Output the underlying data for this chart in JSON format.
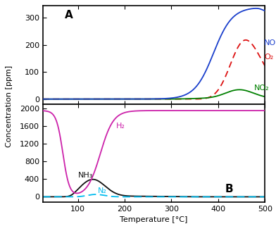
{
  "title_A": "A",
  "title_B": "B",
  "xlabel": "Temperature [°C]",
  "ylabel": "Concentration [ppm]",
  "xlim": [
    25,
    500
  ],
  "ylim_A": [
    -18,
    345
  ],
  "ylim_B": [
    -120,
    2100
  ],
  "yticks_A": [
    0,
    100,
    200,
    300
  ],
  "yticks_B": [
    0,
    400,
    800,
    1200,
    1600,
    2000
  ],
  "xticks": [
    100,
    200,
    300,
    400,
    500
  ],
  "colors": {
    "NO": "#1a3fcc",
    "O2": "#dd1111",
    "NO2": "#008000",
    "H2": "#cc22aa",
    "NH3": "#111111",
    "N2": "#00bbee"
  },
  "background": "#ffffff"
}
